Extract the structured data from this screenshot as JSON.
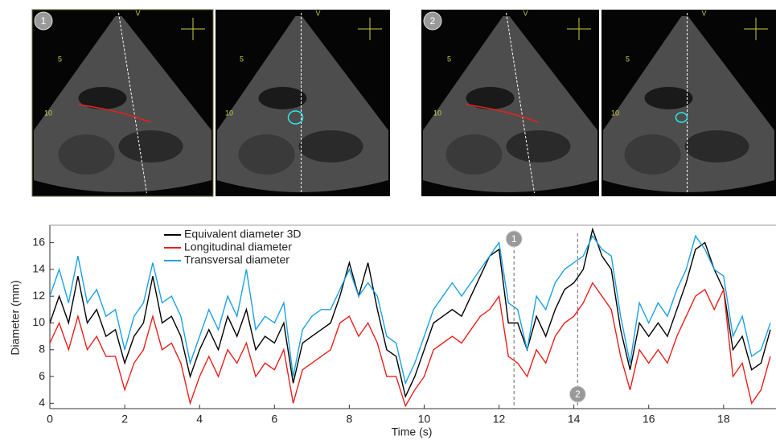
{
  "images": [
    {
      "label": "1",
      "panels": [
        {
          "marker": "V",
          "depths": [
            "5",
            "10"
          ]
        },
        {
          "marker": "V",
          "depths": [
            "5",
            "10"
          ]
        }
      ]
    },
    {
      "label": "2",
      "panels": [
        {
          "marker": "V",
          "depths": [
            "5",
            "10"
          ]
        },
        {
          "marker": "V",
          "depths": [
            "5",
            "10"
          ]
        }
      ]
    }
  ],
  "chart_data": {
    "type": "line",
    "x_label": "Time (s)",
    "y_label": "Diameter (mm)",
    "x": [
      0,
      0.25,
      0.5,
      0.75,
      1,
      1.25,
      1.5,
      1.75,
      2,
      2.25,
      2.5,
      2.75,
      3,
      3.25,
      3.5,
      3.75,
      4,
      4.25,
      4.5,
      4.75,
      5,
      5.25,
      5.5,
      5.75,
      6,
      6.25,
      6.5,
      6.75,
      7,
      7.25,
      7.5,
      7.75,
      8,
      8.25,
      8.5,
      8.75,
      9,
      9.25,
      9.5,
      9.75,
      10,
      10.25,
      10.5,
      10.75,
      11,
      11.25,
      11.5,
      11.75,
      12,
      12.25,
      12.5,
      12.75,
      13,
      13.25,
      13.5,
      13.75,
      14,
      14.25,
      14.5,
      14.75,
      15,
      15.25,
      15.5,
      15.75,
      16,
      16.25,
      16.5,
      16.75,
      17,
      17.25,
      17.5,
      17.75,
      18,
      18.25,
      18.5,
      18.75,
      19,
      19.25
    ],
    "series": [
      {
        "name": "Equivalent diameter 3D",
        "color": "#000000",
        "values": [
          10,
          12,
          10,
          13.5,
          10,
          11,
          9,
          9.5,
          7,
          9,
          10,
          13.5,
          10,
          10.5,
          9,
          6,
          8,
          9.5,
          8,
          10.5,
          9,
          11,
          8,
          9,
          8.5,
          10,
          5.5,
          8.5,
          9,
          9.5,
          10,
          12,
          14.5,
          12,
          14.5,
          11,
          8,
          7.5,
          4.5,
          6,
          8,
          10,
          10.5,
          11,
          10.5,
          12,
          13.5,
          15,
          15.5,
          10,
          10,
          8,
          10.5,
          9,
          11,
          12.5,
          13,
          14,
          17,
          15,
          14,
          9.5,
          6.5,
          10,
          9,
          10,
          9,
          11,
          13,
          15.5,
          16,
          14,
          12.5,
          8,
          9,
          6.5,
          7,
          9.5
        ]
      },
      {
        "name": "Longitudinal diameter",
        "color": "#e8201c",
        "values": [
          8.5,
          10,
          8,
          10.5,
          8,
          9,
          7.5,
          7.5,
          5,
          7,
          8,
          10.5,
          8,
          8.5,
          7,
          4,
          6,
          7.5,
          6,
          8,
          7,
          8.5,
          6,
          7,
          6.5,
          8,
          4,
          6.5,
          7,
          7.5,
          8,
          10,
          10.5,
          9,
          10,
          8.5,
          6,
          6,
          3.8,
          5,
          6,
          8,
          8.5,
          9,
          8.5,
          9.5,
          10.5,
          11,
          12,
          7.5,
          7,
          6,
          8,
          7,
          9,
          10,
          10.5,
          11.5,
          13,
          12,
          11,
          7.5,
          5,
          8,
          7,
          8,
          7,
          9,
          10.5,
          12,
          12.5,
          11,
          12.5,
          6,
          7,
          4,
          5,
          7.5
        ]
      },
      {
        "name": "Transversal diameter",
        "color": "#1ba1e2",
        "values": [
          12,
          14,
          11.5,
          15,
          11.5,
          12.5,
          10.5,
          11,
          8,
          10.5,
          11.5,
          14.5,
          11.5,
          12,
          10.5,
          7,
          9,
          11,
          9.5,
          12,
          10.5,
          14,
          9.5,
          10.5,
          10,
          11.5,
          6,
          9.5,
          10.5,
          11,
          11,
          12.5,
          14,
          12,
          13,
          12,
          9,
          8.5,
          5.5,
          7,
          9,
          11,
          12,
          13,
          12,
          13,
          14,
          15,
          16,
          11.5,
          11,
          8,
          12,
          11,
          13,
          14,
          14.5,
          15,
          16.5,
          15.5,
          15,
          10.5,
          7,
          11.5,
          10,
          11.5,
          10.5,
          12.5,
          14,
          16.5,
          15.5,
          14,
          13.5,
          9,
          10.5,
          7.5,
          8,
          10
        ]
      }
    ],
    "xlim": [
      0,
      19.4
    ],
    "ylim": [
      3.6,
      17.3
    ],
    "xticks": [
      0,
      2,
      4,
      6,
      8,
      10,
      12,
      14,
      16,
      18
    ],
    "yticks": [
      4,
      6,
      8,
      10,
      12,
      14,
      16
    ],
    "annotations": [
      {
        "x": 12.4,
        "label": "1",
        "position": "top"
      },
      {
        "x": 14.1,
        "label": "2",
        "position": "bottom"
      }
    ],
    "legend": "upper left"
  }
}
